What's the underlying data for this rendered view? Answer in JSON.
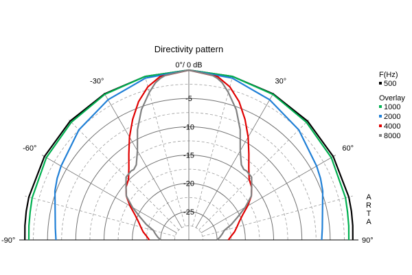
{
  "chart_data": {
    "type": "polar",
    "title": "Directivity pattern",
    "angle_labels": [
      {
        "angle": 0,
        "text": "0°/ 0 dB"
      },
      {
        "angle": -30,
        "text": "-30°"
      },
      {
        "angle": 30,
        "text": "30°"
      },
      {
        "angle": -60,
        "text": "-60°"
      },
      {
        "angle": 60,
        "text": "60°"
      },
      {
        "angle": -90,
        "text": "-90°"
      },
      {
        "angle": 90,
        "text": "90°"
      }
    ],
    "radial_ticks": [
      "-5",
      "-10",
      "-15",
      "-20",
      "-25"
    ],
    "radial_values": [
      -5,
      -10,
      -15,
      -20,
      -25
    ],
    "r_range_db": [
      -30,
      0
    ],
    "legend": {
      "header": "F(Hz)",
      "overlay_header": "Overlay",
      "placement": "right"
    },
    "series": [
      {
        "name": "500",
        "color": "#000000",
        "angles": [
          0,
          15,
          30,
          45,
          60,
          75,
          80,
          85,
          90
        ],
        "values": [
          0,
          -0.1,
          -0.2,
          -0.3,
          -0.5,
          -0.7,
          -0.8,
          -0.9,
          -1.0
        ]
      },
      {
        "name": "1000",
        "color": "#00b050",
        "angles": [
          0,
          15,
          30,
          45,
          60,
          75,
          80,
          85,
          90
        ],
        "values": [
          0,
          -0.1,
          -0.3,
          -0.6,
          -0.9,
          -1.3,
          -1.5,
          -1.6,
          -1.7
        ]
      },
      {
        "name": "2000",
        "color": "#1f7fd6",
        "angles": [
          0,
          15,
          30,
          45,
          60,
          65,
          70,
          75,
          80,
          85,
          90
        ],
        "values": [
          0,
          -0.4,
          -1.4,
          -2.5,
          -3.9,
          -4.3,
          -4.8,
          -5.5,
          -6.0,
          -6.3,
          -6.5
        ]
      },
      {
        "name": "4000",
        "color": "#e00000",
        "angles": [
          0,
          10,
          15,
          20,
          25,
          30,
          35,
          40,
          45,
          50,
          55,
          60,
          65,
          70,
          75,
          80,
          85,
          90
        ],
        "values": [
          0,
          -0.7,
          -2.0,
          -4.0,
          -6.5,
          -9.0,
          -11.5,
          -13.5,
          -14.9,
          -15.5,
          -16.5,
          -18.0,
          -19.5,
          -20.5,
          -21.2,
          -21.8,
          -22.5,
          -23.0
        ]
      },
      {
        "name": "8000",
        "color": "#808080",
        "angles": [
          0,
          8,
          10,
          12,
          15,
          20,
          25,
          30,
          35,
          38,
          40,
          45,
          50,
          55,
          60,
          65,
          70,
          75,
          80,
          85,
          90
        ],
        "values": [
          0,
          -0.6,
          -1.0,
          -1.6,
          -3.0,
          -5.5,
          -8.5,
          -11.8,
          -13.8,
          -14.2,
          -14.1,
          -14.3,
          -15.5,
          -16.5,
          -18.5,
          -20.5,
          -22.0,
          -23.5,
          -24.0,
          -24.5,
          -25.0
        ]
      }
    ]
  },
  "watermark": [
    "A",
    "R",
    "T",
    "A"
  ]
}
